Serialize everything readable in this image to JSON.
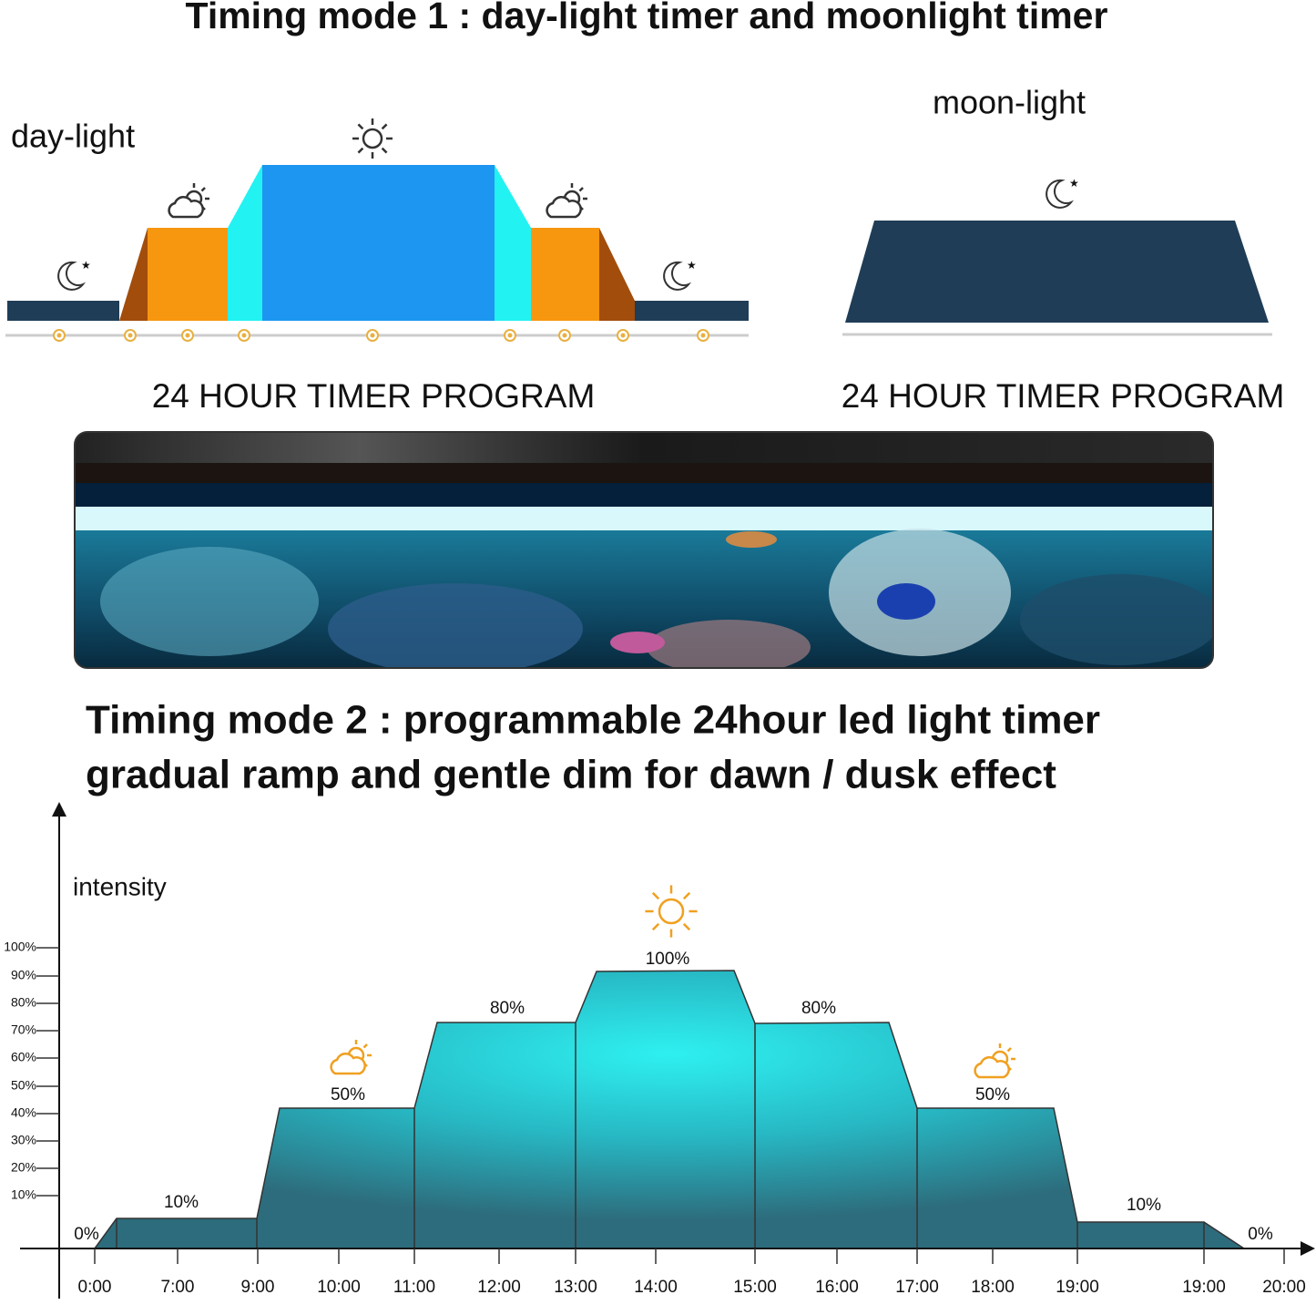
{
  "mode1": {
    "title": "Timing mode 1 : day-light timer and moonlight timer",
    "daylight_label": "day-light",
    "moonlight_label": "moon-light",
    "program_labels": [
      "24 HOUR TIMER PROGRAM",
      "24 HOUR TIMER PROGRAM"
    ]
  },
  "mode2": {
    "title_lines": [
      "Timing mode 2 : programmable 24hour led light timer",
      "gradual ramp and gentle dim for dawn / dusk effect"
    ],
    "axis_label": "intensity",
    "y_ticks": [
      "100%",
      "90%",
      "80%",
      "70%",
      "60%",
      "50%",
      "40%",
      "30%",
      "20%",
      "10%"
    ],
    "x_ticks": [
      "0:00",
      "7:00",
      "9:00",
      "10:00",
      "11:00",
      "12:00",
      "13:00",
      "14:00",
      "15:00",
      "16:00",
      "17:00",
      "18:00",
      "19:00",
      "19:00",
      "20:00"
    ],
    "level_labels": [
      "0%",
      "10%",
      "50%",
      "80%",
      "100%",
      "80%",
      "50%",
      "10%",
      "0%"
    ]
  }
}
